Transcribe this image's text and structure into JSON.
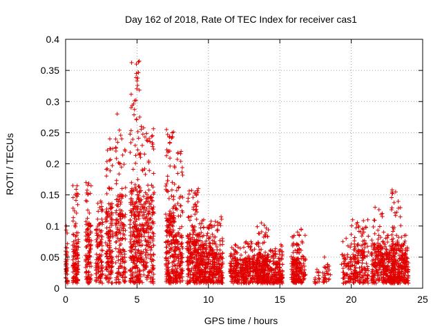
{
  "chart_data": {
    "type": "scatter",
    "title": "Day 162 of 2018, Rate Of TEC Index for receiver cas1",
    "xlabel": "GPS time / hours",
    "ylabel": "ROTI / TECUs",
    "xlim": [
      0,
      25
    ],
    "ylim": [
      0,
      0.4
    ],
    "x_ticks": [
      0,
      5,
      10,
      15,
      20,
      25
    ],
    "x_tick_labels": [
      "0",
      "5",
      "10",
      "15",
      "20",
      "25"
    ],
    "y_ticks": [
      0,
      0.05,
      0.1,
      0.15,
      0.2,
      0.25,
      0.3,
      0.35,
      0.4
    ],
    "y_tick_labels": [
      "0",
      "0.05",
      "0.1",
      "0.15",
      "0.2",
      "0.25",
      "0.3",
      "0.35",
      "0.4"
    ],
    "grid": true,
    "marker": "plus",
    "color": "#e00000",
    "series": [
      {
        "name": "ROTI",
        "clusters": [
          {
            "x": [
              0.0,
              0.15
            ],
            "ymax": 0.1,
            "ymid": 0.04,
            "n": 40
          },
          {
            "x": [
              0.5,
              0.9
            ],
            "ymax": 0.165,
            "ymid": 0.05,
            "n": 120
          },
          {
            "x": [
              1.4,
              1.8
            ],
            "ymax": 0.17,
            "ymid": 0.06,
            "n": 120
          },
          {
            "x": [
              2.1,
              2.6
            ],
            "ymax": 0.14,
            "ymid": 0.06,
            "n": 110
          },
          {
            "x": [
              2.8,
              3.3
            ],
            "ymax": 0.24,
            "ymid": 0.08,
            "n": 150
          },
          {
            "x": [
              3.5,
              4.2
            ],
            "ymax": 0.28,
            "ymid": 0.09,
            "n": 170
          },
          {
            "x": [
              4.5,
              5.2
            ],
            "ymax": 0.365,
            "ymid": 0.1,
            "n": 260
          },
          {
            "x": [
              5.2,
              6.2
            ],
            "ymax": 0.26,
            "ymid": 0.09,
            "n": 240
          },
          {
            "x": [
              7.0,
              7.6
            ],
            "ymax": 0.255,
            "ymid": 0.07,
            "n": 200
          },
          {
            "x": [
              7.6,
              8.2
            ],
            "ymax": 0.22,
            "ymid": 0.05,
            "n": 150
          },
          {
            "x": [
              8.5,
              9.3
            ],
            "ymax": 0.16,
            "ymid": 0.05,
            "n": 220
          },
          {
            "x": [
              9.3,
              10.3
            ],
            "ymax": 0.11,
            "ymid": 0.04,
            "n": 250
          },
          {
            "x": [
              10.3,
              11.0
            ],
            "ymax": 0.115,
            "ymid": 0.03,
            "n": 150
          },
          {
            "x": [
              11.5,
              12.5
            ],
            "ymax": 0.07,
            "ymid": 0.025,
            "n": 160
          },
          {
            "x": [
              12.5,
              13.5
            ],
            "ymax": 0.075,
            "ymid": 0.025,
            "n": 170
          },
          {
            "x": [
              13.4,
              14.2
            ],
            "ymax": 0.105,
            "ymid": 0.03,
            "n": 200
          },
          {
            "x": [
              14.2,
              15.2
            ],
            "ymax": 0.07,
            "ymid": 0.025,
            "n": 170
          },
          {
            "x": [
              15.8,
              16.5
            ],
            "ymax": 0.095,
            "ymid": 0.025,
            "n": 160
          },
          {
            "x": [
              16.5,
              16.8
            ],
            "ymax": 0.085,
            "ymid": 0.03,
            "n": 30
          },
          {
            "x": [
              17.4,
              17.8
            ],
            "ymax": 0.03,
            "ymid": 0.015,
            "n": 15
          },
          {
            "x": [
              18.0,
              18.6
            ],
            "ymax": 0.05,
            "ymid": 0.02,
            "n": 30
          },
          {
            "x": [
              19.3,
              19.9
            ],
            "ymax": 0.08,
            "ymid": 0.025,
            "n": 50
          },
          {
            "x": [
              19.9,
              20.5
            ],
            "ymax": 0.11,
            "ymid": 0.04,
            "n": 90
          },
          {
            "x": [
              20.5,
              21.2
            ],
            "ymax": 0.11,
            "ymid": 0.04,
            "n": 100
          },
          {
            "x": [
              21.4,
              22.2
            ],
            "ymax": 0.13,
            "ymid": 0.04,
            "n": 150
          },
          {
            "x": [
              22.2,
              22.8
            ],
            "ymax": 0.09,
            "ymid": 0.03,
            "n": 130
          },
          {
            "x": [
              22.8,
              23.5
            ],
            "ymax": 0.158,
            "ymid": 0.04,
            "n": 200
          },
          {
            "x": [
              23.5,
              24.0
            ],
            "ymax": 0.085,
            "ymid": 0.03,
            "n": 110
          }
        ]
      }
    ]
  }
}
